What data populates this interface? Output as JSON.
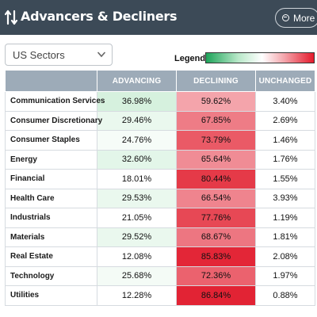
{
  "header": {
    "title": "Advancers & Decliners",
    "more_label": "More"
  },
  "filter": {
    "selected": "US Sectors"
  },
  "legend": {
    "label": "Legend:",
    "colors": [
      "#1ea45a",
      "#ffffff",
      "#e51a2c"
    ]
  },
  "table": {
    "columns": [
      "",
      "ADVANCING",
      "DECLINING",
      "UNCHANGED"
    ],
    "rows": [
      {
        "sector": "Communication Services",
        "advancing": "36.98%",
        "declining": "59.62%",
        "unchanged": "3.40%",
        "adv_color": "#d6f1de",
        "dec_color": "#f4a4ab"
      },
      {
        "sector": "Consumer Discretionary",
        "advancing": "29.46%",
        "declining": "67.85%",
        "unchanged": "2.69%",
        "adv_color": "#eaf8ee",
        "dec_color": "#ee7c86"
      },
      {
        "sector": "Consumer Staples",
        "advancing": "24.76%",
        "declining": "73.79%",
        "unchanged": "1.46%",
        "adv_color": "#f6fcf8",
        "dec_color": "#ea5a66"
      },
      {
        "sector": "Energy",
        "advancing": "32.60%",
        "declining": "65.64%",
        "unchanged": "1.76%",
        "adv_color": "#e3f6e9",
        "dec_color": "#f08c95"
      },
      {
        "sector": "Financial",
        "advancing": "18.01%",
        "declining": "80.44%",
        "unchanged": "1.55%",
        "adv_color": "#ffffff",
        "dec_color": "#e53a48"
      },
      {
        "sector": "Health Care",
        "advancing": "29.53%",
        "declining": "66.54%",
        "unchanged": "3.93%",
        "adv_color": "#eaf8ee",
        "dec_color": "#ef848e"
      },
      {
        "sector": "Industrials",
        "advancing": "21.05%",
        "declining": "77.76%",
        "unchanged": "1.19%",
        "adv_color": "#ffffff",
        "dec_color": "#e74855"
      },
      {
        "sector": "Materials",
        "advancing": "29.52%",
        "declining": "68.67%",
        "unchanged": "1.81%",
        "adv_color": "#eaf8ee",
        "dec_color": "#ed7681"
      },
      {
        "sector": "Real Estate",
        "advancing": "12.08%",
        "declining": "85.83%",
        "unchanged": "2.08%",
        "adv_color": "#ffffff",
        "dec_color": "#e32637"
      },
      {
        "sector": "Technology",
        "advancing": "25.68%",
        "declining": "72.36%",
        "unchanged": "1.97%",
        "adv_color": "#f4fbf6",
        "dec_color": "#eb626e"
      },
      {
        "sector": "Utilities",
        "advancing": "12.28%",
        "declining": "86.84%",
        "unchanged": "0.88%",
        "adv_color": "#ffffff",
        "dec_color": "#e22334"
      }
    ]
  }
}
